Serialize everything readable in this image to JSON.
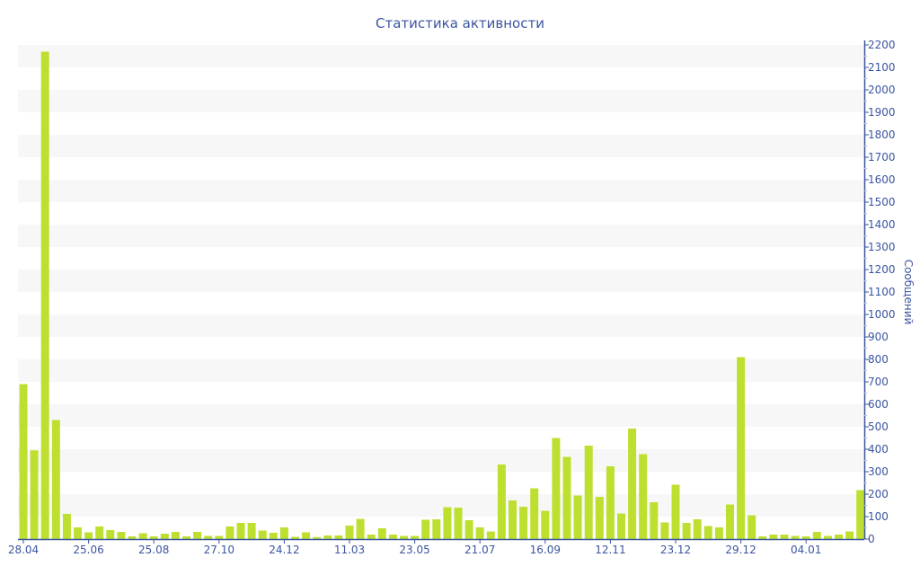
{
  "chart_data": {
    "type": "bar",
    "title": "Статистика активности",
    "ylabel": "Сообщений",
    "xlabel": "",
    "ylim": [
      0,
      2200
    ],
    "y_tick_step": 100,
    "y_axis_side": "right",
    "grid": "alternating horizontal bands",
    "x_ticks": [
      {
        "index": 0,
        "label": "28.04"
      },
      {
        "index": 6,
        "label": "25.06"
      },
      {
        "index": 12,
        "label": "25.08"
      },
      {
        "index": 18,
        "label": "27.10"
      },
      {
        "index": 24,
        "label": "24.12"
      },
      {
        "index": 30,
        "label": "11.03"
      },
      {
        "index": 36,
        "label": "23.05"
      },
      {
        "index": 42,
        "label": "21.07"
      },
      {
        "index": 48,
        "label": "16.09"
      },
      {
        "index": 54,
        "label": "12.11"
      },
      {
        "index": 60,
        "label": "23.12"
      },
      {
        "index": 66,
        "label": "29.12"
      },
      {
        "index": 72,
        "label": "04.01"
      }
    ],
    "values": [
      690,
      395,
      2170,
      530,
      112,
      52,
      30,
      56,
      40,
      32,
      12,
      26,
      12,
      24,
      32,
      12,
      32,
      14,
      14,
      56,
      72,
      72,
      38,
      28,
      52,
      10,
      30,
      9,
      16,
      16,
      60,
      90,
      20,
      48,
      20,
      14,
      14,
      86,
      88,
      142,
      140,
      84,
      52,
      34,
      332,
      172,
      144,
      226,
      126,
      450,
      366,
      194,
      416,
      188,
      324,
      114,
      492,
      378,
      164,
      74,
      242,
      72,
      88,
      58,
      52,
      154,
      810,
      106,
      12,
      20,
      20,
      14,
      12,
      32,
      14,
      20,
      34,
      218
    ],
    "colors": {
      "bar": "#bde030",
      "axis": "#3b55a0",
      "band": "#f7f7f7"
    }
  }
}
